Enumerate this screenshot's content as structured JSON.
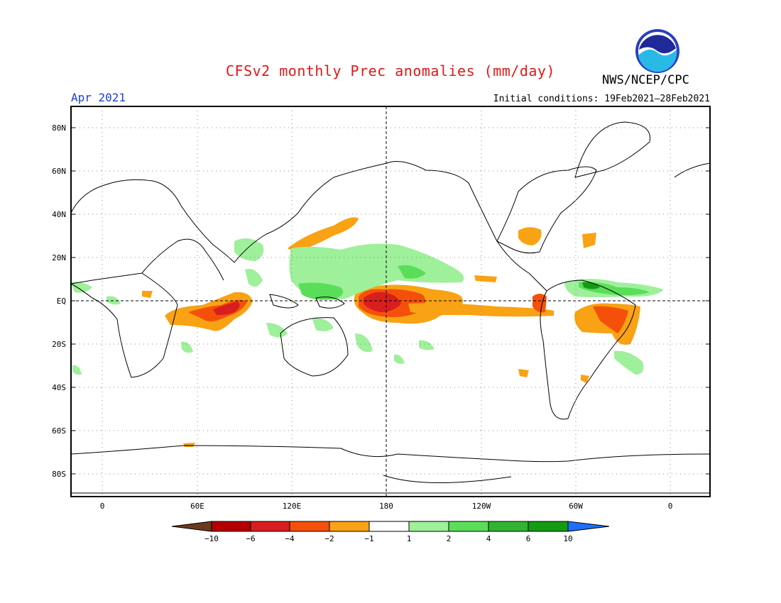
{
  "title": "CFSv2 monthly Prec anomalies (mm/day)",
  "valid_month": "Apr 2021",
  "agency": "NWS/NCEP/CPC",
  "logo_text": "NOAA",
  "initial_conditions": "Initial conditions: 19Feb2021–28Feb2021",
  "map": {
    "projection": "equirectangular",
    "lon_range": [
      -20,
      380
    ],
    "lat_range": [
      -90,
      90
    ],
    "lat_labels": [
      "80N",
      "60N",
      "40N",
      "20N",
      "EQ",
      "20S",
      "40S",
      "60S",
      "80S"
    ],
    "lon_labels": [
      "0",
      "60E",
      "120E",
      "180",
      "120W",
      "60W",
      "0"
    ],
    "grid": "dotted"
  },
  "colorbar": {
    "labels": [
      "−10",
      "−6",
      "−4",
      "−2",
      "−1",
      "1",
      "2",
      "4",
      "6",
      "10"
    ],
    "colors": [
      "#6b3a1e",
      "#b40000",
      "#d81e1e",
      "#f5500a",
      "#f8a214",
      "#ffffff",
      "#9ef09a",
      "#5ade5a",
      "#32b432",
      "#149b14",
      "#1e6fff"
    ]
  },
  "colors": {
    "title": "#e01818",
    "month": "#1a3fd8"
  }
}
